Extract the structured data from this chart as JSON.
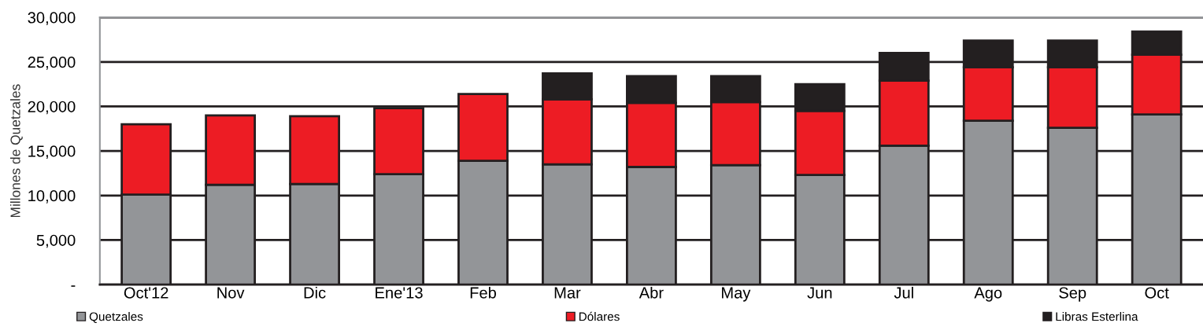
{
  "chart_data": {
    "type": "bar",
    "stacked": true,
    "ylabel": "Millones de Quetzales",
    "categories": [
      "Oct'12",
      "Nov",
      "Dic",
      "Ene'13",
      "Feb",
      "Mar",
      "Abr",
      "May",
      "Jun",
      "Jul",
      "Ago",
      "Sep",
      "Oct"
    ],
    "series": [
      {
        "name": "Quetzales",
        "color": "#939598",
        "values": [
          10100,
          11200,
          11300,
          12400,
          13900,
          13500,
          13200,
          13400,
          12300,
          15600,
          18400,
          17600,
          19100
        ]
      },
      {
        "name": "Dólares",
        "color": "#ed1c24",
        "values": [
          7900,
          7800,
          7600,
          7400,
          7500,
          7300,
          7200,
          7100,
          7200,
          7300,
          6000,
          6800,
          6700
        ]
      },
      {
        "name": "Libras Esterlina",
        "color": "#231f20",
        "values": [
          null,
          null,
          null,
          null,
          null,
          2900,
          3000,
          2900,
          3000,
          3100,
          3000,
          3000,
          2600
        ]
      }
    ],
    "ylim": [
      0,
      30000
    ],
    "yticks": [
      {
        "value": 0,
        "label": "-"
      },
      {
        "value": 5000,
        "label": "5,000"
      },
      {
        "value": 10000,
        "label": "10,000"
      },
      {
        "value": 15000,
        "label": "15,000"
      },
      {
        "value": 20000,
        "label": "20,000"
      },
      {
        "value": 25000,
        "label": "25,000"
      },
      {
        "value": 30000,
        "label": "30,000"
      }
    ],
    "grid": "y",
    "legend": "bottom"
  }
}
